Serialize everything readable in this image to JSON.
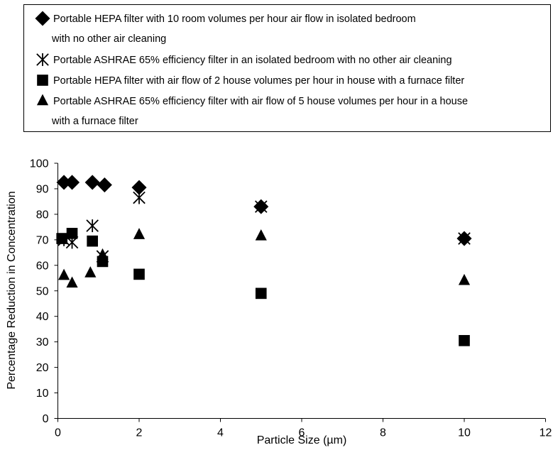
{
  "chart_data": {
    "type": "scatter",
    "xlabel": "Particle Size (µm)",
    "ylabel": "Percentage Reduction in Concentration",
    "xlim": [
      0,
      12
    ],
    "ylim": [
      0,
      100
    ],
    "xticks": [
      0,
      2,
      4,
      6,
      8,
      10,
      12
    ],
    "yticks": [
      0,
      10,
      20,
      30,
      40,
      50,
      60,
      70,
      80,
      90,
      100
    ],
    "grid": false,
    "legend_position": "top",
    "series": [
      {
        "name": "Portable HEPA filter with 10 room volumes per hour air flow in isolated bedroom with no other air cleaning",
        "legend_lines": [
          "Portable HEPA filter with 10 room volumes per hour air flow in isolated bedroom",
          "with no other air cleaning"
        ],
        "marker": "diamond",
        "x": [
          0.15,
          0.35,
          0.85,
          1.15,
          2.0,
          5.0,
          10.0
        ],
        "y": [
          92.5,
          92.5,
          92.5,
          91.5,
          90.5,
          83.0,
          70.5
        ]
      },
      {
        "name": "Portable ASHRAE 65% efficiency filter in an isolated bedroom with no other air cleaning",
        "legend_lines": [
          "Portable ASHRAE 65% efficiency filter in an isolated bedroom with no other air cleaning"
        ],
        "marker": "asterisk",
        "x": [
          0.15,
          0.35,
          0.85,
          1.1,
          2.0,
          5.0,
          10.0
        ],
        "y": [
          70.0,
          69.0,
          75.5,
          63.5,
          86.5,
          83.0,
          70.5
        ]
      },
      {
        "name": "Portable HEPA filter with air flow of 2 house volumes per hour in house with a furnace filter",
        "legend_lines": [
          "Portable HEPA filter with air flow of 2 house volumes per hour in house with a furnace filter"
        ],
        "marker": "square",
        "x": [
          0.1,
          0.35,
          0.85,
          1.1,
          2.0,
          5.0,
          10.0
        ],
        "y": [
          70.5,
          72.5,
          69.5,
          61.5,
          56.5,
          49.0,
          30.5
        ]
      },
      {
        "name": "Portable ASHRAE 65% efficiency filter with air flow of 5 house volumes per hour in a house with a furnace filter",
        "legend_lines": [
          "Portable ASHRAE 65% efficiency filter with air flow of 5 house volumes per hour in a house",
          "with a furnace filter"
        ],
        "marker": "triangle",
        "x": [
          0.15,
          0.35,
          0.8,
          1.1,
          2.0,
          5.0,
          10.0
        ],
        "y": [
          56.0,
          53.0,
          57.0,
          64.0,
          72.0,
          71.5,
          54.0
        ]
      }
    ]
  }
}
